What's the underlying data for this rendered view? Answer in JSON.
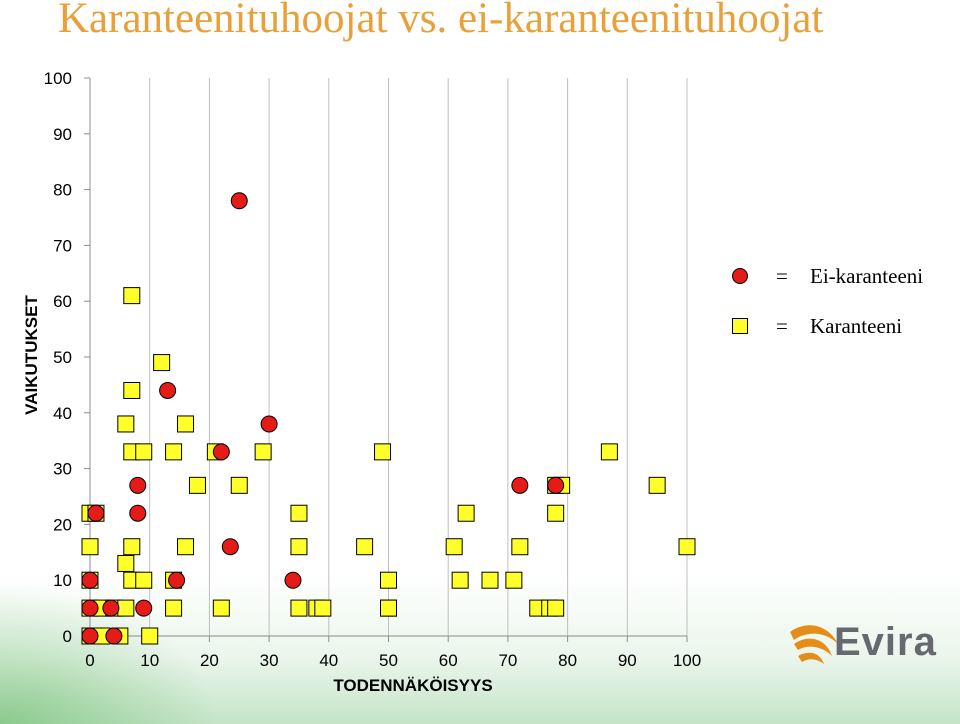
{
  "title": "Karanteenituhoojat vs. ei-karanteenituhoojat",
  "brand": {
    "name": "Evira",
    "swoosh_color": "#e58d17",
    "text_color": "#666a70"
  },
  "colors": {
    "title": "#e8a13a",
    "ei_karanteeni_marker": "#e41b17",
    "karanteeni_marker": "#ffff2a",
    "gridline": "#bfbfbf",
    "footer_green": "#46aa46"
  },
  "legend": [
    {
      "symbol": "circle",
      "eq": "=",
      "label": "Ei-karanteeni"
    },
    {
      "symbol": "square",
      "eq": "=",
      "label": "Karanteeni"
    }
  ],
  "chart_data": {
    "type": "scatter",
    "title": "Karanteenituhoojat vs. ei-karanteenituhoojat",
    "xlabel": "TODENNÄKÖISYYS",
    "ylabel": "VAIKUTUKSET",
    "xlim": [
      0,
      100
    ],
    "ylim": [
      0,
      100
    ],
    "x_ticks": [
      0,
      10,
      20,
      30,
      40,
      50,
      60,
      70,
      80,
      90,
      100
    ],
    "y_ticks": [
      0,
      10,
      20,
      30,
      40,
      50,
      60,
      70,
      80,
      90,
      100
    ],
    "grid": {
      "vertical": true,
      "horizontal": false
    },
    "legend_position": "right",
    "series": [
      {
        "name": "Ei-karanteeni",
        "marker": "circle",
        "points": [
          [
            0,
            0
          ],
          [
            4,
            0
          ],
          [
            0,
            5
          ],
          [
            3.5,
            5
          ],
          [
            9,
            5
          ],
          [
            0,
            10
          ],
          [
            14.5,
            10
          ],
          [
            34,
            10
          ],
          [
            1,
            22
          ],
          [
            8,
            22
          ],
          [
            8,
            27
          ],
          [
            23.5,
            16
          ],
          [
            22,
            33
          ],
          [
            30,
            38
          ],
          [
            13,
            44
          ],
          [
            25,
            78
          ],
          [
            72,
            27
          ],
          [
            78,
            27
          ]
        ]
      },
      {
        "name": "Karanteeni",
        "marker": "square",
        "points": [
          [
            0,
            0
          ],
          [
            2,
            0
          ],
          [
            5,
            0
          ],
          [
            10,
            0
          ],
          [
            0,
            5
          ],
          [
            2,
            5
          ],
          [
            4,
            5
          ],
          [
            6,
            5
          ],
          [
            14,
            5
          ],
          [
            22,
            5
          ],
          [
            35,
            5
          ],
          [
            38,
            5
          ],
          [
            39,
            5
          ],
          [
            50,
            5
          ],
          [
            50,
            5
          ],
          [
            75,
            5
          ],
          [
            77,
            5
          ],
          [
            78,
            5
          ],
          [
            0,
            10
          ],
          [
            7,
            10
          ],
          [
            9,
            10
          ],
          [
            14,
            10
          ],
          [
            50,
            10
          ],
          [
            62,
            10
          ],
          [
            67,
            10
          ],
          [
            71,
            10
          ],
          [
            6,
            13
          ],
          [
            0,
            16
          ],
          [
            7,
            16
          ],
          [
            16,
            16
          ],
          [
            35,
            16
          ],
          [
            46,
            16
          ],
          [
            61,
            16
          ],
          [
            72,
            16
          ],
          [
            100,
            16
          ],
          [
            0,
            22
          ],
          [
            1,
            22
          ],
          [
            35,
            22
          ],
          [
            63,
            22
          ],
          [
            78,
            22
          ],
          [
            18,
            27
          ],
          [
            25,
            27
          ],
          [
            78,
            27
          ],
          [
            79,
            27
          ],
          [
            95,
            27
          ],
          [
            7,
            33
          ],
          [
            9,
            33
          ],
          [
            14,
            33
          ],
          [
            21,
            33
          ],
          [
            29,
            33
          ],
          [
            49,
            33
          ],
          [
            87,
            33
          ],
          [
            6,
            38
          ],
          [
            16,
            38
          ],
          [
            7,
            44
          ],
          [
            12,
            49
          ],
          [
            7,
            61
          ]
        ]
      }
    ]
  }
}
